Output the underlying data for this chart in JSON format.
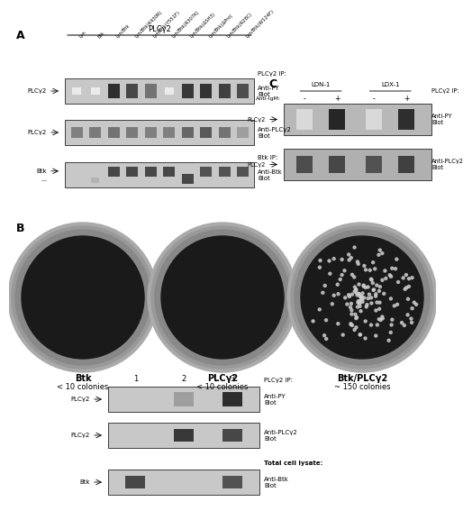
{
  "fig_width": 4.74,
  "fig_height": 5.42,
  "bg_color": "#ffffff",
  "panel_A": {
    "label": "A",
    "col_labels": [
      "Lyn",
      "Btk",
      "Lyn/Btk",
      "Lyn/Btk(K430R)",
      "Lyn/Btk(Y551F)",
      "Lyn/Btk(R307K)",
      "Lyn/Btk(ΔSH3)",
      "Lyn/Btk(ΔPro)",
      "Lyn/Btk(R28C)",
      "Lyn/Btk(W124F)"
    ]
  },
  "panel_B": {
    "label": "B",
    "plates": [
      {
        "label": "Btk",
        "sublabel": "< 10 colonies"
      },
      {
        "label": "PLCγ2",
        "sublabel": "< 10 colonies"
      },
      {
        "label": "Btk/PLCγ2",
        "sublabel": "~ 150 colonies"
      }
    ]
  },
  "panel_C": {
    "label": "C",
    "col_sublabels": [
      "-",
      "+",
      "-",
      "+"
    ]
  },
  "panel_bottom": {
    "col_labels": [
      "1",
      "2",
      "3"
    ]
  }
}
